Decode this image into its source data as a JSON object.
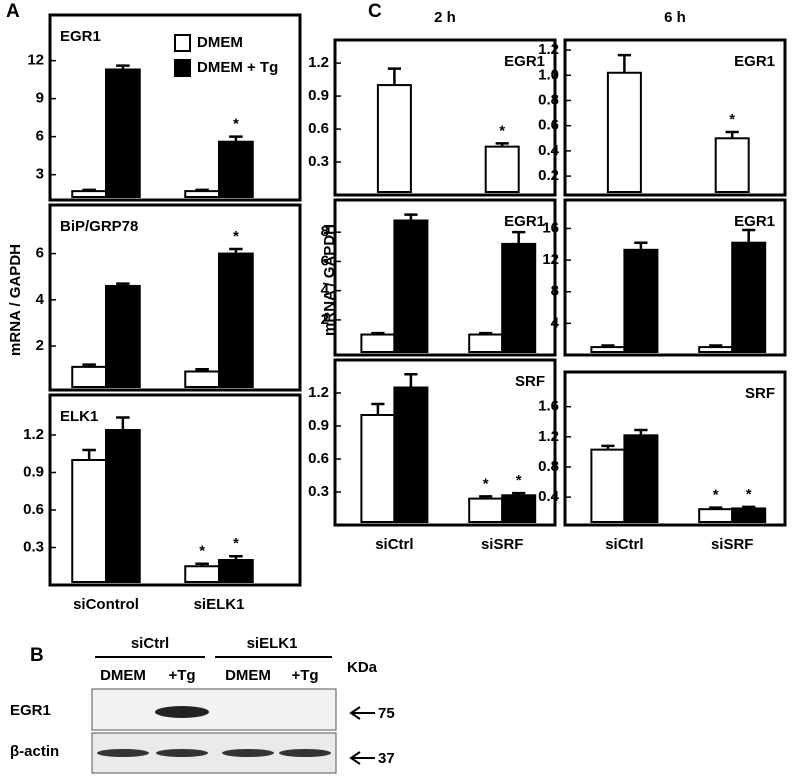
{
  "panel_labels": [
    "A",
    "B",
    "C"
  ],
  "ylabels": [
    "mRNA / GAPDH",
    "mRNA / GAPDH"
  ],
  "blot": {
    "groups": [
      "siCtrl",
      "siELK1"
    ],
    "lanes": [
      "DMEM",
      "+Tg",
      "DMEM",
      "+Tg"
    ],
    "unit": "KDa",
    "rows": [
      {
        "label": "EGR1",
        "marker": 75
      },
      {
        "label": "β-actin",
        "marker": 37
      }
    ]
  },
  "chart_data": [
    {
      "type": "bar",
      "title": "EGR1",
      "categories": [
        null,
        null
      ],
      "legend": "upper right",
      "series": [
        {
          "name": "DMEM",
          "color": "#ffffff",
          "values": [
            1.7,
            1.7
          ],
          "errors": [
            0.1,
            0.1
          ],
          "annotations": [
            null,
            null
          ]
        },
        {
          "name": "DMEM + Tg",
          "color": "#000000",
          "values": [
            11.3,
            5.6
          ],
          "errors": [
            0.3,
            0.4
          ],
          "annotations": [
            null,
            "*"
          ]
        }
      ],
      "ylim": [
        1,
        15.6
      ],
      "yticks": [
        3,
        6,
        9,
        12
      ]
    },
    {
      "type": "bar",
      "title": "BiP/GRP78",
      "categories": [
        null,
        null
      ],
      "series": [
        {
          "color": "#ffffff",
          "values": [
            1.1,
            0.9
          ],
          "errors": [
            0.1,
            0.1
          ],
          "annotations": [
            null,
            null
          ]
        },
        {
          "color": "#000000",
          "values": [
            4.6,
            6.0
          ],
          "errors": [
            0.1,
            0.2
          ],
          "annotations": [
            null,
            "*"
          ]
        }
      ],
      "ylim": [
        0.1,
        8.1
      ],
      "yticks": [
        2,
        4,
        6
      ]
    },
    {
      "type": "bar",
      "title": "ELK1",
      "categories": [
        "siControl",
        "siELK1"
      ],
      "series": [
        {
          "color": "#ffffff",
          "values": [
            1.0,
            0.15
          ],
          "errors": [
            0.08,
            0.02
          ],
          "annotations": [
            null,
            "*"
          ]
        },
        {
          "color": "#000000",
          "values": [
            1.24,
            0.2
          ],
          "errors": [
            0.1,
            0.03
          ],
          "annotations": [
            null,
            "*"
          ]
        }
      ],
      "ylim": [
        0,
        1.52
      ],
      "yticks": [
        0.3,
        0.6,
        0.9,
        1.2
      ]
    },
    {
      "type": "bar",
      "header": "2 h",
      "title": "EGR1",
      "categories": [
        null,
        null
      ],
      "series": [
        {
          "color": "#ffffff",
          "values": [
            1.0,
            0.44
          ],
          "errors": [
            0.15,
            0.03
          ],
          "annotations": [
            null,
            "*"
          ]
        }
      ],
      "ylim": [
        0,
        1.41
      ],
      "yticks": [
        0.3,
        0.6,
        0.9,
        1.2
      ]
    },
    {
      "type": "bar",
      "header": "6 h",
      "title": "EGR1",
      "categories": [
        null,
        null
      ],
      "series": [
        {
          "color": "#ffffff",
          "values": [
            1.02,
            0.5
          ],
          "errors": [
            0.14,
            0.05
          ],
          "annotations": [
            null,
            "*"
          ]
        }
      ],
      "ylim": [
        0.05,
        1.28
      ],
      "yticks": [
        0.2,
        0.4,
        0.6,
        0.8,
        {
          "value": 1.0,
          "label": "1.0"
        },
        1.2
      ]
    },
    {
      "type": "bar",
      "title": "EGR1",
      "categories": [
        null,
        null
      ],
      "series": [
        {
          "color": "#ffffff",
          "values": [
            1.0,
            1.0
          ],
          "errors": [
            0.1,
            0.1
          ],
          "annotations": [
            null,
            null
          ]
        },
        {
          "color": "#000000",
          "values": [
            8.8,
            7.2
          ],
          "errors": [
            0.4,
            0.8
          ],
          "annotations": [
            null,
            null
          ]
        }
      ],
      "ylim": [
        -0.4,
        10.2
      ],
      "yticks": [
        2,
        4,
        6,
        8
      ]
    },
    {
      "type": "bar",
      "title": "EGR1",
      "categories": [
        null,
        null
      ],
      "series": [
        {
          "color": "#ffffff",
          "values": [
            1.0,
            1.0
          ],
          "errors": [
            0.2,
            0.2
          ],
          "annotations": [
            null,
            null
          ]
        },
        {
          "color": "#000000",
          "values": [
            13.3,
            14.2
          ],
          "errors": [
            0.9,
            1.6
          ],
          "annotations": [
            null,
            null
          ]
        }
      ],
      "ylim": [
        0,
        19.6
      ],
      "yticks": [
        4,
        8,
        12,
        16
      ]
    },
    {
      "type": "bar",
      "title": "SRF",
      "categories": [
        "siCtrl",
        "siSRF"
      ],
      "series": [
        {
          "color": "#ffffff",
          "values": [
            1.0,
            0.24
          ],
          "errors": [
            0.1,
            0.02
          ],
          "annotations": [
            null,
            "*"
          ]
        },
        {
          "color": "#000000",
          "values": [
            1.25,
            0.27
          ],
          "errors": [
            0.12,
            0.02
          ],
          "annotations": [
            null,
            "*"
          ]
        }
      ],
      "ylim": [
        0,
        1.5
      ],
      "yticks": [
        0.3,
        0.6,
        0.9,
        1.2
      ]
    },
    {
      "type": "bar",
      "title": "SRF",
      "categories": [
        "siCtrl",
        "siSRF"
      ],
      "series": [
        {
          "color": "#ffffff",
          "values": [
            1.03,
            0.24
          ],
          "errors": [
            0.05,
            0.02
          ],
          "annotations": [
            null,
            "*"
          ]
        },
        {
          "color": "#000000",
          "values": [
            1.22,
            0.25
          ],
          "errors": [
            0.07,
            0.02
          ],
          "annotations": [
            null,
            "*"
          ]
        }
      ],
      "ylim": [
        0.03,
        2.06
      ],
      "yticks": [
        0.4,
        0.8,
        1.2,
        1.6
      ]
    }
  ]
}
